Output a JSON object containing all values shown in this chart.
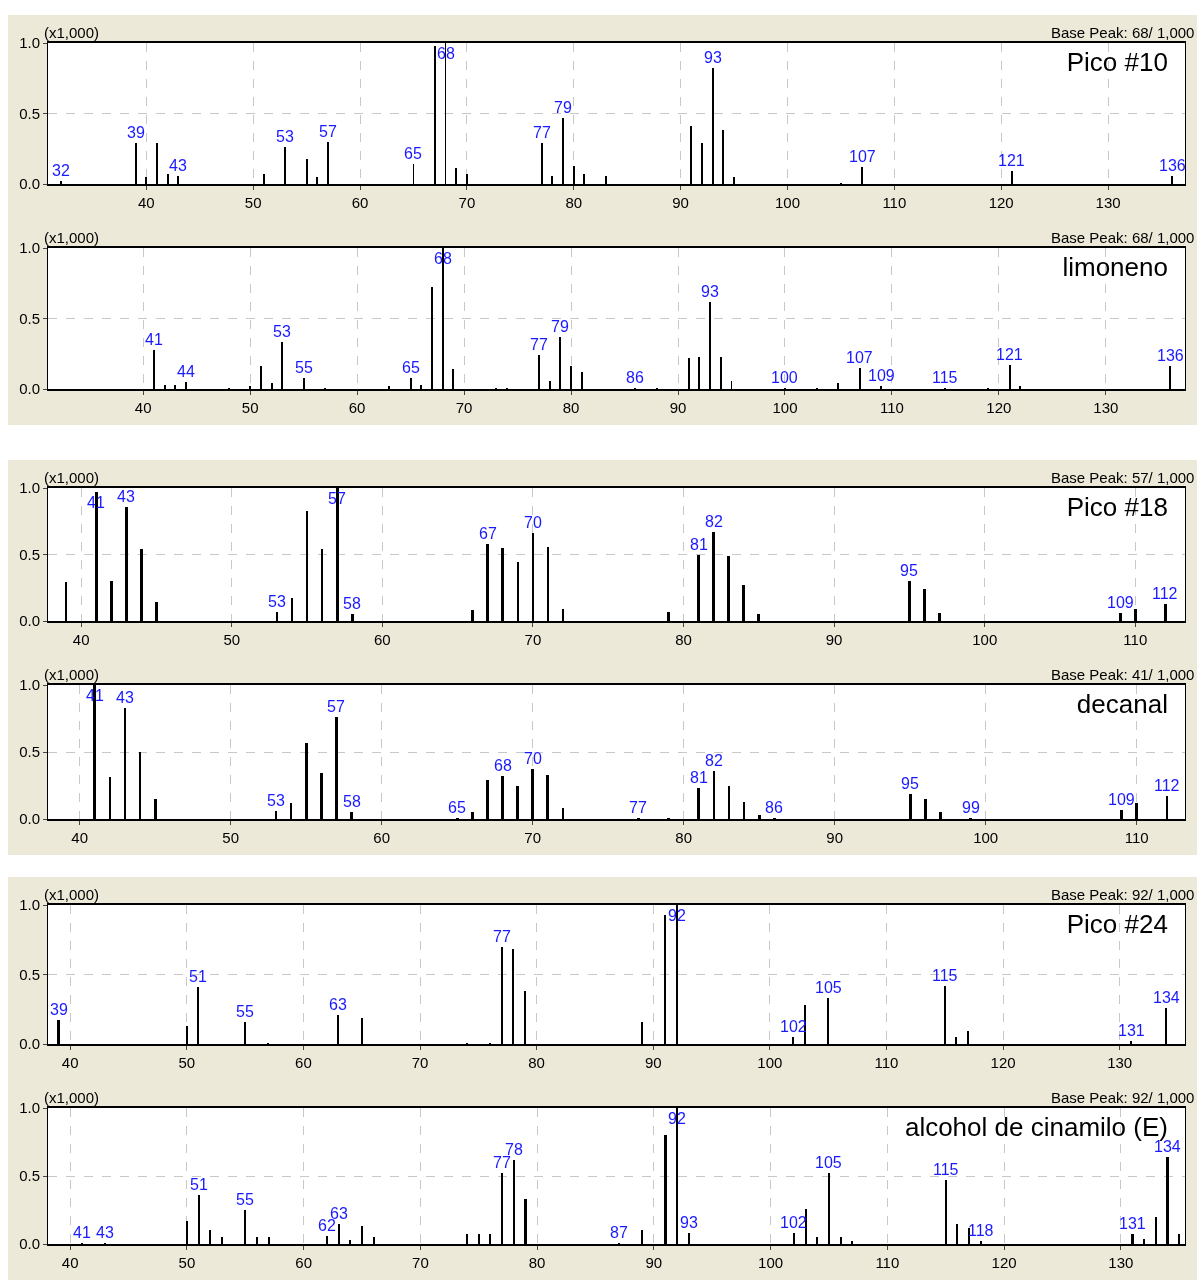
{
  "chart_data": [
    {
      "type": "bar",
      "title": "Pico #10",
      "annotations": [
        "(x1,000)",
        "Base Peak: 68/ 1,000",
        {
          "text": "32",
          "x": 32,
          "y": 0.02
        },
        {
          "text": "39",
          "x": 39,
          "y": 0.29
        },
        {
          "text": "43",
          "x": 43,
          "y": 0.06
        },
        {
          "text": "53",
          "x": 53,
          "y": 0.26
        },
        {
          "text": "57",
          "x": 57,
          "y": 0.3
        },
        {
          "text": "65",
          "x": 65,
          "y": 0.14
        },
        {
          "text": "68",
          "x": 68,
          "y": 1.0
        },
        {
          "text": "77",
          "x": 77,
          "y": 0.29
        },
        {
          "text": "79",
          "x": 79,
          "y": 0.47
        },
        {
          "text": "93",
          "x": 93,
          "y": 0.82
        },
        {
          "text": "107",
          "x": 107,
          "y": 0.12
        },
        {
          "text": "121",
          "x": 121,
          "y": 0.09
        },
        {
          "text": "136",
          "x": 136,
          "y": 0.06
        }
      ],
      "color": "#000000",
      "grid": true,
      "ylim": [
        0,
        1
      ],
      "yticks": [
        {
          "value": 0,
          "label": "0.0"
        },
        {
          "value": 0.5,
          "label": "0.5"
        },
        {
          "value": 1,
          "label": "1.0"
        }
      ],
      "xlim": [
        30.8,
        137.2
      ],
      "xticks": [
        40,
        50,
        60,
        70,
        80,
        90,
        100,
        110,
        120,
        130
      ],
      "x": [
        32,
        39,
        40,
        41,
        42,
        43,
        51,
        53,
        55,
        56,
        57,
        65,
        67,
        68,
        69,
        70,
        77,
        78,
        79,
        80,
        81,
        83,
        91,
        92,
        93,
        94,
        95,
        105,
        107,
        121,
        136
      ],
      "values": [
        0.02,
        0.29,
        0.05,
        0.29,
        0.07,
        0.06,
        0.07,
        0.26,
        0.18,
        0.05,
        0.3,
        0.14,
        0.98,
        1.0,
        0.11,
        0.07,
        0.29,
        0.06,
        0.47,
        0.13,
        0.07,
        0.06,
        0.41,
        0.29,
        0.82,
        0.38,
        0.05,
        0.01,
        0.12,
        0.09,
        0.06
      ]
    },
    {
      "type": "bar",
      "title": "limoneno",
      "annotations": [
        "(x1,000)",
        "Base Peak: 68/ 1,000",
        {
          "text": "41",
          "x": 41,
          "y": 0.28
        },
        {
          "text": "44",
          "x": 44,
          "y": 0.05
        },
        {
          "text": "53",
          "x": 53,
          "y": 0.33
        },
        {
          "text": "55",
          "x": 55,
          "y": 0.08
        },
        {
          "text": "65",
          "x": 65,
          "y": 0.08
        },
        {
          "text": "68",
          "x": 68,
          "y": 1.0
        },
        {
          "text": "77",
          "x": 77,
          "y": 0.24
        },
        {
          "text": "79",
          "x": 79,
          "y": 0.37
        },
        {
          "text": "86",
          "x": 86,
          "y": 0.01
        },
        {
          "text": "93",
          "x": 93,
          "y": 0.62
        },
        {
          "text": "100",
          "x": 100,
          "y": 0.01
        },
        {
          "text": "107",
          "x": 107,
          "y": 0.15
        },
        {
          "text": "109",
          "x": 109,
          "y": 0.02
        },
        {
          "text": "115",
          "x": 115,
          "y": 0.01
        },
        {
          "text": "121",
          "x": 121,
          "y": 0.17
        },
        {
          "text": "136",
          "x": 136,
          "y": 0.16
        }
      ],
      "color": "#000000",
      "grid": true,
      "ylim": [
        0,
        1
      ],
      "yticks": [
        {
          "value": 0,
          "label": "0.0"
        },
        {
          "value": 0.5,
          "label": "0.5"
        },
        {
          "value": 1,
          "label": "1.0"
        }
      ],
      "xlim": [
        31.1,
        137.4
      ],
      "xticks": [
        40,
        50,
        60,
        70,
        80,
        90,
        100,
        110,
        120,
        130
      ],
      "x": [
        41,
        42,
        43,
        44,
        48,
        50,
        51,
        52,
        53,
        55,
        57,
        63,
        65,
        66,
        67,
        68,
        69,
        73,
        74,
        77,
        78,
        79,
        80,
        81,
        86,
        88,
        91,
        92,
        93,
        94,
        95,
        100,
        103,
        105,
        107,
        109,
        115,
        119,
        121,
        122,
        136
      ],
      "values": [
        0.28,
        0.03,
        0.03,
        0.05,
        0.01,
        0.02,
        0.16,
        0.04,
        0.33,
        0.08,
        0.01,
        0.02,
        0.08,
        0.03,
        0.72,
        1.0,
        0.14,
        0.01,
        0.01,
        0.24,
        0.06,
        0.37,
        0.16,
        0.12,
        0.01,
        0.01,
        0.22,
        0.23,
        0.62,
        0.23,
        0.06,
        0.01,
        0.01,
        0.04,
        0.15,
        0.02,
        0.01,
        0.01,
        0.17,
        0.02,
        0.16
      ]
    },
    {
      "type": "bar",
      "title": "Pico #18",
      "annotations": [
        "(x1,000)",
        "Base Peak: 57/ 1,000",
        {
          "text": "41",
          "x": 41,
          "y": 0.97
        },
        {
          "text": "43",
          "x": 43,
          "y": 0.86
        },
        {
          "text": "53",
          "x": 53,
          "y": 0.07
        },
        {
          "text": "57",
          "x": 57,
          "y": 1.0
        },
        {
          "text": "58",
          "x": 58,
          "y": 0.05
        },
        {
          "text": "67",
          "x": 67,
          "y": 0.58
        },
        {
          "text": "70",
          "x": 70,
          "y": 0.66
        },
        {
          "text": "81",
          "x": 81,
          "y": 0.5
        },
        {
          "text": "82",
          "x": 82,
          "y": 0.67
        },
        {
          "text": "95",
          "x": 95,
          "y": 0.3
        },
        {
          "text": "109",
          "x": 109,
          "y": 0.06
        },
        {
          "text": "112",
          "x": 112,
          "y": 0.13
        }
      ],
      "color": "#000000",
      "grid": true,
      "ylim": [
        0,
        1
      ],
      "yticks": [
        {
          "value": 0,
          "label": "0.0"
        },
        {
          "value": 0.5,
          "label": "0.5"
        },
        {
          "value": 1,
          "label": "1.0"
        }
      ],
      "xlim": [
        37.8,
        113.3
      ],
      "xticks": [
        40,
        50,
        60,
        70,
        80,
        90,
        100,
        110
      ],
      "x": [
        39,
        41,
        42,
        43,
        44,
        45,
        53,
        54,
        55,
        56,
        57,
        58,
        66,
        67,
        68,
        69,
        70,
        71,
        72,
        79,
        81,
        82,
        83,
        84,
        85,
        95,
        96,
        97,
        109,
        110,
        112
      ],
      "values": [
        0.29,
        0.97,
        0.3,
        0.86,
        0.54,
        0.14,
        0.07,
        0.17,
        0.83,
        0.54,
        1.0,
        0.05,
        0.08,
        0.58,
        0.55,
        0.44,
        0.66,
        0.56,
        0.09,
        0.07,
        0.5,
        0.67,
        0.49,
        0.27,
        0.05,
        0.3,
        0.24,
        0.06,
        0.06,
        0.09,
        0.13
      ]
    },
    {
      "type": "bar",
      "title": "decanal",
      "annotations": [
        "(x1,000)",
        "Base Peak: 41/ 1,000",
        {
          "text": "41",
          "x": 41,
          "y": 1.0
        },
        {
          "text": "43",
          "x": 43,
          "y": 0.83
        },
        {
          "text": "53",
          "x": 53,
          "y": 0.06
        },
        {
          "text": "57",
          "x": 57,
          "y": 0.76
        },
        {
          "text": "58",
          "x": 58,
          "y": 0.05
        },
        {
          "text": "65",
          "x": 65,
          "y": 0.01
        },
        {
          "text": "68",
          "x": 68,
          "y": 0.32
        },
        {
          "text": "70",
          "x": 70,
          "y": 0.37
        },
        {
          "text": "77",
          "x": 77,
          "y": 0.01
        },
        {
          "text": "81",
          "x": 81,
          "y": 0.23
        },
        {
          "text": "82",
          "x": 82,
          "y": 0.36
        },
        {
          "text": "86",
          "x": 86,
          "y": 0.01
        },
        {
          "text": "95",
          "x": 95,
          "y": 0.19
        },
        {
          "text": "99",
          "x": 99,
          "y": 0.01
        },
        {
          "text": "109",
          "x": 109,
          "y": 0.07
        },
        {
          "text": "112",
          "x": 112,
          "y": 0.17
        }
      ],
      "color": "#000000",
      "grid": true,
      "ylim": [
        0,
        1
      ],
      "yticks": [
        {
          "value": 0,
          "label": "0.0"
        },
        {
          "value": 0.5,
          "label": "0.5"
        },
        {
          "value": 1,
          "label": "1.0"
        }
      ],
      "xlim": [
        37.9,
        113.2
      ],
      "xticks": [
        40,
        50,
        60,
        70,
        80,
        90,
        100,
        110
      ],
      "x": [
        41,
        42,
        43,
        44,
        45,
        53,
        54,
        55,
        56,
        57,
        58,
        65,
        66,
        67,
        68,
        69,
        70,
        71,
        72,
        77,
        79,
        81,
        82,
        83,
        84,
        85,
        86,
        95,
        96,
        97,
        99,
        109,
        110,
        112
      ],
      "values": [
        1.0,
        0.31,
        0.83,
        0.5,
        0.15,
        0.06,
        0.12,
        0.57,
        0.34,
        0.76,
        0.05,
        0.01,
        0.05,
        0.29,
        0.32,
        0.25,
        0.37,
        0.33,
        0.08,
        0.01,
        0.01,
        0.23,
        0.36,
        0.25,
        0.13,
        0.03,
        0.01,
        0.19,
        0.15,
        0.05,
        0.01,
        0.07,
        0.12,
        0.17
      ]
    },
    {
      "type": "bar",
      "title": "Pico #24",
      "annotations": [
        "(x1,000)",
        "Base Peak: 92/ 1,000",
        {
          "text": "39",
          "x": 39,
          "y": 0.17
        },
        {
          "text": "51",
          "x": 51,
          "y": 0.41
        },
        {
          "text": "55",
          "x": 55,
          "y": 0.16
        },
        {
          "text": "63",
          "x": 63,
          "y": 0.21
        },
        {
          "text": "77",
          "x": 77,
          "y": 0.7
        },
        {
          "text": "92",
          "x": 92,
          "y": 1.0
        },
        {
          "text": "102",
          "x": 102,
          "y": 0.05
        },
        {
          "text": "105",
          "x": 105,
          "y": 0.33
        },
        {
          "text": "115",
          "x": 115,
          "y": 0.42
        },
        {
          "text": "131",
          "x": 131,
          "y": 0.02
        },
        {
          "text": "134",
          "x": 134,
          "y": 0.26
        }
      ],
      "color": "#000000",
      "grid": true,
      "ylim": [
        0,
        1
      ],
      "yticks": [
        {
          "value": 0,
          "label": "0.0"
        },
        {
          "value": 0.5,
          "label": "0.5"
        },
        {
          "value": 1,
          "label": "1.0"
        }
      ],
      "xlim": [
        38.1,
        135.6
      ],
      "xticks": [
        40,
        50,
        60,
        70,
        80,
        90,
        100,
        110,
        120,
        130
      ],
      "x": [
        39,
        50,
        51,
        55,
        57,
        63,
        65,
        74,
        76,
        77,
        78,
        79,
        89,
        91,
        92,
        102,
        103,
        105,
        115,
        116,
        117,
        131,
        134
      ],
      "values": [
        0.17,
        0.13,
        0.41,
        0.16,
        0.01,
        0.21,
        0.19,
        0.01,
        0.01,
        0.7,
        0.68,
        0.38,
        0.16,
        0.93,
        1.0,
        0.05,
        0.28,
        0.33,
        0.42,
        0.05,
        0.09,
        0.02,
        0.26
      ]
    },
    {
      "type": "bar",
      "title": "alcohol de cinamilo (E)",
      "annotations": [
        "(x1,000)",
        "Base Peak: 92/ 1,000",
        {
          "text": "41",
          "x": 41,
          "y": 0.01
        },
        {
          "text": "43",
          "x": 43,
          "y": 0.01
        },
        {
          "text": "51",
          "x": 51,
          "y": 0.36
        },
        {
          "text": "55",
          "x": 55,
          "y": 0.25
        },
        {
          "text": "62",
          "x": 62,
          "y": 0.06
        },
        {
          "text": "63",
          "x": 63,
          "y": 0.15
        },
        {
          "text": "77",
          "x": 77,
          "y": 0.52
        },
        {
          "text": "78",
          "x": 78,
          "y": 0.62
        },
        {
          "text": "87",
          "x": 87,
          "y": 0.01
        },
        {
          "text": "92",
          "x": 92,
          "y": 1.0
        },
        {
          "text": "93",
          "x": 93,
          "y": 0.08
        },
        {
          "text": "102",
          "x": 102,
          "y": 0.08
        },
        {
          "text": "105",
          "x": 105,
          "y": 0.52
        },
        {
          "text": "115",
          "x": 115,
          "y": 0.47
        },
        {
          "text": "118",
          "x": 118,
          "y": 0.02
        },
        {
          "text": "131",
          "x": 131,
          "y": 0.07
        },
        {
          "text": "134",
          "x": 134,
          "y": 0.64
        }
      ],
      "color": "#000000",
      "grid": true,
      "ylim": [
        0,
        1
      ],
      "yticks": [
        {
          "value": 0,
          "label": "0.0"
        },
        {
          "value": 0.5,
          "label": "0.5"
        },
        {
          "value": 1,
          "label": "1.0"
        }
      ],
      "xlim": [
        38.1,
        135.5
      ],
      "xticks": [
        40,
        50,
        60,
        70,
        80,
        90,
        100,
        110,
        120,
        130
      ],
      "x": [
        41,
        43,
        50,
        51,
        52,
        53,
        55,
        56,
        57,
        62,
        63,
        64,
        65,
        66,
        74,
        75,
        76,
        77,
        78,
        79,
        87,
        89,
        91,
        92,
        93,
        102,
        103,
        104,
        105,
        106,
        107,
        115,
        116,
        117,
        118,
        131,
        132,
        133,
        134,
        135
      ],
      "values": [
        0.01,
        0.01,
        0.17,
        0.36,
        0.1,
        0.05,
        0.25,
        0.05,
        0.05,
        0.06,
        0.15,
        0.03,
        0.13,
        0.05,
        0.07,
        0.07,
        0.07,
        0.52,
        0.62,
        0.33,
        0.01,
        0.1,
        0.8,
        1.0,
        0.08,
        0.08,
        0.26,
        0.05,
        0.52,
        0.05,
        0.02,
        0.47,
        0.15,
        0.12,
        0.02,
        0.07,
        0.04,
        0.2,
        0.64,
        0.07
      ]
    }
  ]
}
